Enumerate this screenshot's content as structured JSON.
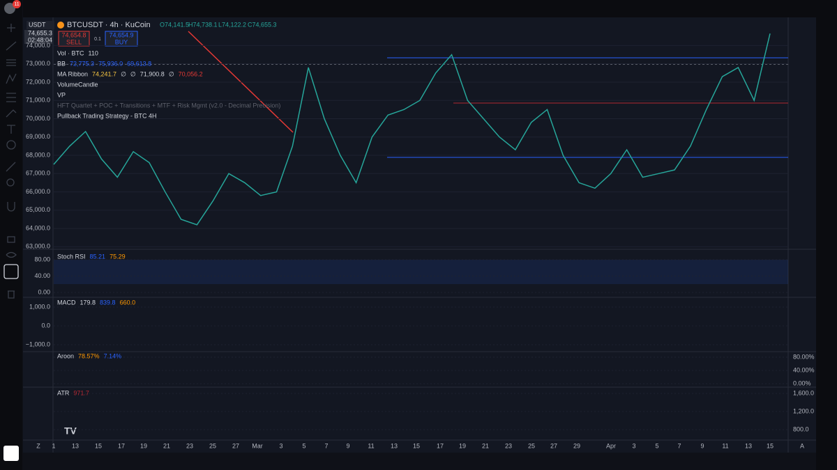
{
  "toolbar_badge": "11",
  "header": {
    "symbol": "BTCUSDT · 4h · KuCoin",
    "open": "O74,141.5",
    "high": "H74,738.1",
    "low": "L74,122.2",
    "close": "C74,655.3",
    "currency": "USDT",
    "price_tag": "74,655.3",
    "countdown": "02:48:04",
    "sell_price": "74,654.8",
    "sell": "SELL",
    "spread": "0.1",
    "buy_price": "74,654.9",
    "buy": "BUY"
  },
  "legend": [
    [
      "Vol · BTC",
      "110"
    ],
    [
      "BB",
      "72,775.3",
      "75,936.0",
      "69,613.8"
    ],
    [
      "MA Ribbon",
      "74,241.7",
      "∅",
      "∅",
      "71,900.8",
      "∅",
      "70,056.2"
    ],
    [
      "VolumeCandle"
    ],
    [
      "VP"
    ],
    [
      "HFT Quartet + POC + Transitions + MTF + Risk Mgmt (v2.0 - Decimal Precision)"
    ],
    [
      "Pullback Trading Strategy - BTC 4H"
    ]
  ],
  "price": {
    "ylim": [
      62900,
      75500
    ],
    "yticks": [
      {
        "value": 63000,
        "label": "63,000.0"
      },
      {
        "value": 64000,
        "label": "64,000.0"
      },
      {
        "value": 65000,
        "label": "65,000.0"
      },
      {
        "value": 66000,
        "label": "66,000.0"
      },
      {
        "value": 67000,
        "label": "67,000.0"
      },
      {
        "value": 68000,
        "label": "68,000.0"
      },
      {
        "value": 69000,
        "label": "69,000.0"
      },
      {
        "value": 70000,
        "label": "70,000.0"
      },
      {
        "value": 71000,
        "label": "71,000.0"
      },
      {
        "value": 72000,
        "label": "72,000.0"
      },
      {
        "value": 73000,
        "label": "73,000.0"
      },
      {
        "value": 74000,
        "label": "74,000.0"
      }
    ],
    "closes": [
      67500,
      68500,
      69300,
      67800,
      66800,
      68200,
      67600,
      66000,
      64500,
      64200,
      65500,
      67000,
      66500,
      65800,
      66000,
      68500,
      72800,
      70000,
      68000,
      66500,
      69000,
      70200,
      70500,
      71000,
      72500,
      73500,
      71000,
      70000,
      69000,
      68300,
      69800,
      70500,
      68000,
      66500,
      66200,
      67000,
      68300,
      66800,
      67000,
      67200,
      68500,
      70500,
      72300,
      72800,
      71000,
      74655
    ]
  },
  "dates": [
    "1",
    "13",
    "15",
    "17",
    "19",
    "21",
    "23",
    "25",
    "27",
    "Mar",
    "3",
    "5",
    "7",
    "9",
    "11",
    "13",
    "15",
    "17",
    "19",
    "21",
    "23",
    "25",
    "27",
    "29",
    "Apr",
    "3",
    "5",
    "7",
    "9",
    "11",
    "13",
    "15"
  ],
  "corner_left": "Z",
  "corner_right": "A",
  "panels": [
    {
      "name": "Stoch RSI",
      "readings": [
        "85.21",
        "75.29"
      ],
      "colors": [
        "#2962ff",
        "#ff9800"
      ],
      "side": "left",
      "ylim": [
        -8.5,
        98.7
      ],
      "yticks": [
        {
          "value": 0,
          "label": "0.00"
        },
        {
          "value": 40,
          "label": "40.00"
        },
        {
          "value": 80,
          "label": "80.00"
        }
      ]
    },
    {
      "name": "MACD",
      "readings": [
        "179.8",
        "839.8",
        "660.0"
      ],
      "colors": [
        "#d1d4dc",
        "#2962ff",
        "#ff9800"
      ],
      "side": "left",
      "ylim": [
        -1370,
        1481
      ],
      "yticks": [
        {
          "value": -1000,
          "label": "−1,000.0"
        },
        {
          "value": 0,
          "label": "0.0"
        },
        {
          "value": 1000,
          "label": "1,000.0"
        }
      ]
    },
    {
      "name": "Aroon",
      "readings": [
        "78.57%",
        "7.14%"
      ],
      "colors": [
        "#ff9800",
        "#2962ff"
      ],
      "side": "right",
      "ylim": [
        -8.4,
        96.8
      ],
      "yticks": [
        {
          "value": 0,
          "label": "0.00%"
        },
        {
          "value": 40,
          "label": "40.00%"
        },
        {
          "value": 80,
          "label": "80.00%"
        }
      ]
    },
    {
      "name": "ATR",
      "readings": [
        "971.7"
      ],
      "colors": [
        "#b22833"
      ],
      "side": "right",
      "ylim": [
        600,
        1708
      ],
      "yticks": [
        {
          "value": 800,
          "label": "800.0"
        },
        {
          "value": 1200,
          "label": "1,200.0"
        },
        {
          "value": 1600,
          "label": "1,600.0"
        }
      ]
    }
  ]
}
